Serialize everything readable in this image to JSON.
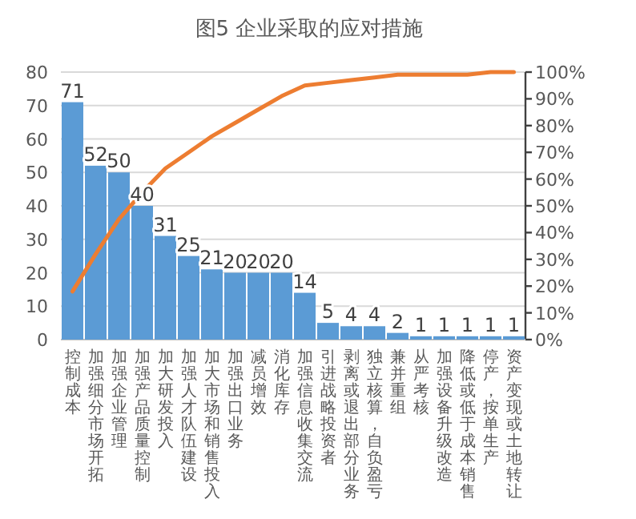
{
  "chart_data": {
    "type": "bar",
    "title": "图5  企业采取的应对措施",
    "categories": [
      "控制成本",
      "加强细分市场开拓",
      "加强企业管理",
      "加强产品质量控制",
      "加大研发投入",
      "加强人才队伍建设",
      "加大市场和销售投入",
      "加强出口业务",
      "减员增效",
      "消化库存",
      "加强信息收集交流",
      "引进战略投资者",
      "剥离或退出部分业务",
      "独立核算，自负盈亏",
      "兼并重组",
      "从严考核",
      "加强设备升级改造",
      "降低或低于成本销售",
      "停产，按单生产",
      "资产变现或土地转让"
    ],
    "series": [
      {
        "color": "#5b9bd5",
        "values": [
          71,
          52,
          50,
          40,
          31,
          25,
          21,
          20,
          20,
          20,
          14,
          5,
          4,
          4,
          2,
          1,
          1,
          1,
          1,
          1
        ],
        "value_labels": [
          "71",
          "52",
          "50",
          "40",
          "31",
          "25",
          "21",
          "20",
          "20",
          "20",
          "14",
          "5",
          "4",
          "4",
          "2",
          "1",
          "1",
          "1",
          "1",
          "1"
        ]
      },
      {
        "type": "line",
        "axis": "y2",
        "color": "#ed7d31",
        "values": [
          18,
          32,
          45,
          55,
          64,
          70,
          76,
          81,
          86,
          91,
          95,
          96,
          97,
          98,
          99,
          99,
          99,
          99,
          100,
          100
        ]
      }
    ],
    "ylim": [
      0,
      80
    ],
    "yticks": [
      0,
      10,
      20,
      30,
      40,
      50,
      60,
      70,
      80
    ],
    "y2lim": [
      0,
      100
    ],
    "y2ticks": [
      {
        "value": 0,
        "label": "0%"
      },
      {
        "value": 10,
        "label": "10%"
      },
      {
        "value": 20,
        "label": "20%"
      },
      {
        "value": 30,
        "label": "30%"
      },
      {
        "value": 40,
        "label": "40%"
      },
      {
        "value": 50,
        "label": "50%"
      },
      {
        "value": 60,
        "label": "60%"
      },
      {
        "value": 70,
        "label": "70%"
      },
      {
        "value": 80,
        "label": "80%"
      },
      {
        "value": 90,
        "label": "90%"
      },
      {
        "value": 100,
        "label": "100%"
      }
    ],
    "grid": "y"
  }
}
